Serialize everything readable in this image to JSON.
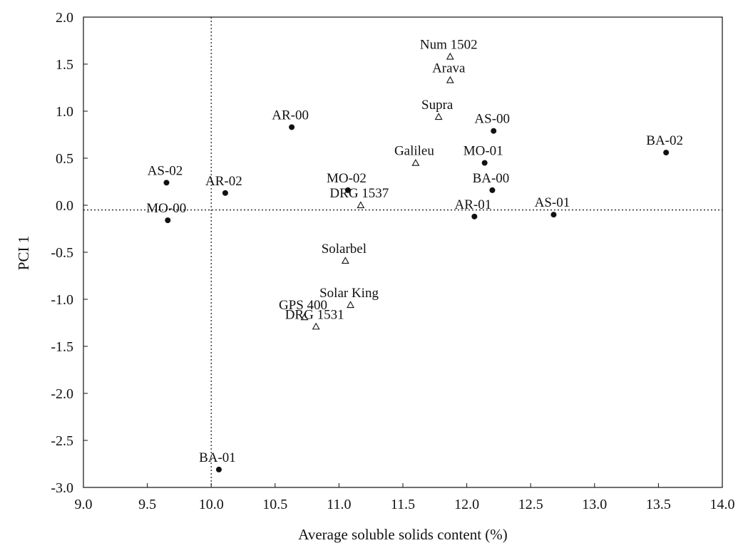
{
  "chart_data": {
    "type": "scatter",
    "xlabel": "Average soluble solids content (%)",
    "ylabel": "PCI 1",
    "xlim": [
      9.0,
      14.0
    ],
    "ylim": [
      -3.0,
      2.0
    ],
    "xticks": [
      "9.0",
      "9.5",
      "10.0",
      "10.5",
      "11.0",
      "11.5",
      "12.0",
      "12.5",
      "13.0",
      "13.5",
      "14.0"
    ],
    "yticks": [
      "2.0",
      "1.5",
      "1.0",
      "0.5",
      "0.0",
      "-0.5",
      "-1.0",
      "-1.5",
      "-2.0",
      "-2.5",
      "-3.0"
    ],
    "reference_lines": {
      "x": 10.0,
      "y": -0.05
    },
    "series": [
      {
        "marker": "filled-circle",
        "points": [
          {
            "label": "AS-02",
            "x": 9.65,
            "y": 0.24
          },
          {
            "label": "MO-00",
            "x": 9.66,
            "y": -0.16
          },
          {
            "label": "AR-02",
            "x": 10.11,
            "y": 0.13
          },
          {
            "label": "AR-00",
            "x": 10.63,
            "y": 0.83
          },
          {
            "label": "MO-02",
            "x": 11.07,
            "y": 0.16
          },
          {
            "label": "AS-00",
            "x": 12.21,
            "y": 0.79
          },
          {
            "label": "MO-01",
            "x": 12.14,
            "y": 0.45
          },
          {
            "label": "BA-00",
            "x": 12.2,
            "y": 0.16
          },
          {
            "label": "AR-01",
            "x": 12.06,
            "y": -0.12
          },
          {
            "label": "AS-01",
            "x": 12.68,
            "y": -0.1
          },
          {
            "label": "BA-02",
            "x": 13.56,
            "y": 0.56
          },
          {
            "label": "BA-01",
            "x": 10.06,
            "y": -2.81
          }
        ]
      },
      {
        "marker": "open-triangle",
        "points": [
          {
            "label": "Num 1502",
            "x": 11.87,
            "y": 1.58
          },
          {
            "label": "Arava",
            "x": 11.87,
            "y": 1.33
          },
          {
            "label": "Supra",
            "x": 11.78,
            "y": 0.94
          },
          {
            "label": "Galileu",
            "x": 11.6,
            "y": 0.45
          },
          {
            "label": "DRG 1537",
            "x": 11.17,
            "y": 0.0
          },
          {
            "label": "Solarbel",
            "x": 11.05,
            "y": -0.59
          },
          {
            "label": "Solar King",
            "x": 11.09,
            "y": -1.06
          },
          {
            "label": "GPS 400",
            "x": 10.73,
            "y": -1.19
          },
          {
            "label": "DRG 1531",
            "x": 10.82,
            "y": -1.29
          }
        ]
      }
    ]
  }
}
